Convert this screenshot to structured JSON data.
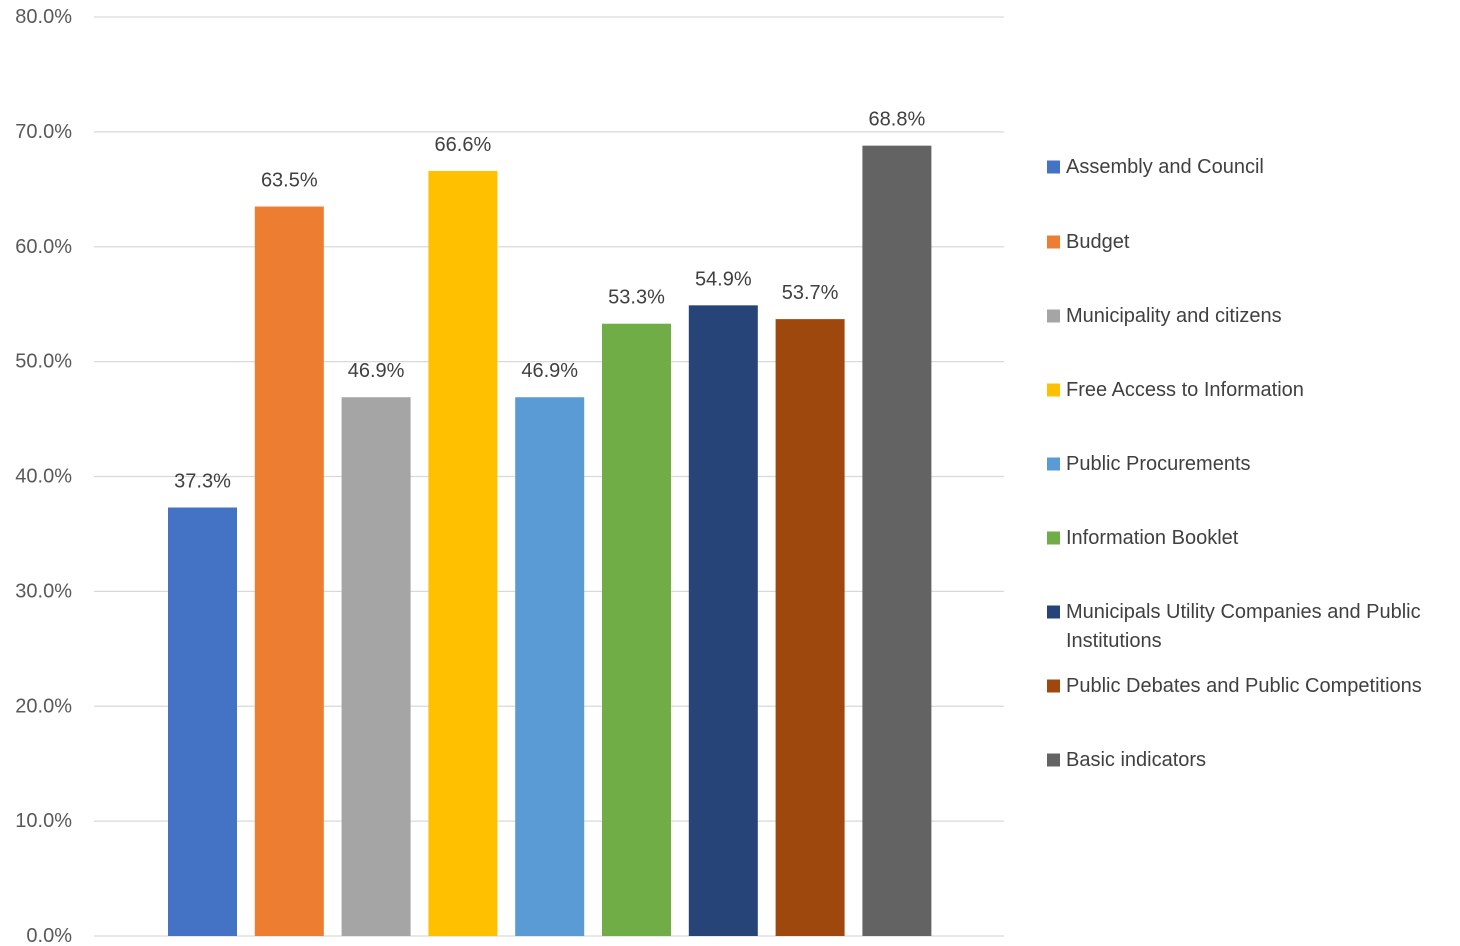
{
  "chart_data": {
    "type": "bar",
    "title": "",
    "xlabel": "",
    "ylabel": "",
    "ylim": [
      0,
      80
    ],
    "y_tick_step": 10,
    "y_tick_format": "percent-1dp",
    "grid": true,
    "legend_position": "right",
    "categories": [
      "Assembly and Council",
      "Budget",
      "Municipality and citizens",
      "Free Access to Information",
      "Public Procurements",
      "Information Booklet",
      "Municipals Utility Companies and Public Institutions",
      "Public Debates and Public Competitions",
      "Basic indicators"
    ],
    "legend_lines": [
      [
        "Assembly and Council"
      ],
      [
        "Budget"
      ],
      [
        "Municipality and citizens"
      ],
      [
        "Free Access to Information"
      ],
      [
        "Public Procurements"
      ],
      [
        "Information Booklet"
      ],
      [
        "Municipals Utility Companies and Public",
        "Institutions"
      ],
      [
        "Public Debates and Public Competitions"
      ],
      [
        "Basic indicators"
      ]
    ],
    "values": [
      37.3,
      63.5,
      46.9,
      66.6,
      46.9,
      53.3,
      54.9,
      53.7,
      68.8
    ],
    "data_labels": [
      "37.3%",
      "63.5%",
      "46.9%",
      "66.6%",
      "46.9%",
      "53.3%",
      "54.9%",
      "53.7%",
      "68.8%"
    ],
    "colors": [
      "#4472c4",
      "#ed7d31",
      "#a5a5a5",
      "#ffc000",
      "#5b9bd5",
      "#70ad47",
      "#264478",
      "#9e480e",
      "#636363"
    ]
  }
}
